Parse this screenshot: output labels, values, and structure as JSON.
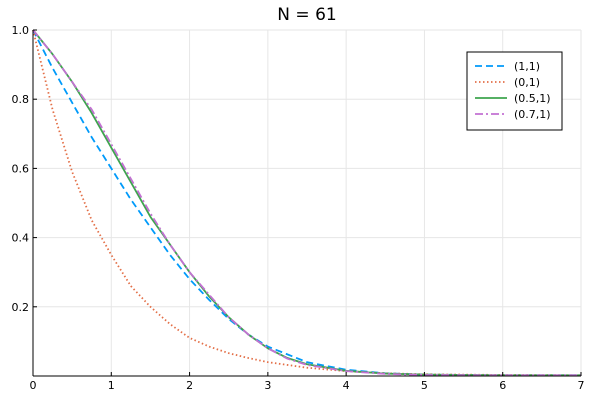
{
  "chart_data": {
    "type": "line",
    "title": "N = 61",
    "xlabel": "",
    "ylabel": "",
    "xlim": [
      0,
      7
    ],
    "ylim": [
      0,
      1.0
    ],
    "xticks": [
      0,
      1,
      2,
      3,
      4,
      5,
      6,
      7
    ],
    "yticks": [
      0.2,
      0.4,
      0.6,
      0.8,
      1.0
    ],
    "ytick_labels": [
      "0.2",
      "0.4",
      "0.6",
      "0.8",
      "1.0"
    ],
    "grid": true,
    "legend_position": "top-right",
    "series": [
      {
        "name": "(1,1)",
        "color": "#009AFA",
        "style": "dashed",
        "x": [
          0,
          0.25,
          0.5,
          0.75,
          1.0,
          1.25,
          1.5,
          1.75,
          2.0,
          2.25,
          2.5,
          2.75,
          3.0,
          3.5,
          4.0,
          4.5,
          5.0,
          6.0,
          7.0
        ],
        "y": [
          1.0,
          0.89,
          0.79,
          0.69,
          0.6,
          0.51,
          0.43,
          0.35,
          0.28,
          0.22,
          0.165,
          0.12,
          0.085,
          0.04,
          0.018,
          0.008,
          0.004,
          0.002,
          0.002
        ]
      },
      {
        "name": "(0,1)",
        "color": "#E36F47",
        "style": "dotted",
        "x": [
          0,
          0.25,
          0.5,
          0.75,
          1.0,
          1.25,
          1.5,
          1.75,
          2.0,
          2.25,
          2.5,
          2.75,
          3.0,
          3.5,
          4.0,
          4.5,
          5.0,
          6.0,
          7.0
        ],
        "y": [
          1.0,
          0.77,
          0.59,
          0.45,
          0.35,
          0.26,
          0.2,
          0.15,
          0.11,
          0.085,
          0.066,
          0.052,
          0.04,
          0.024,
          0.014,
          0.008,
          0.005,
          0.003,
          0.002
        ]
      },
      {
        "name": "(0.5,1)",
        "color": "#3EA44E",
        "style": "solid",
        "x": [
          0,
          0.25,
          0.5,
          0.75,
          1.0,
          1.25,
          1.5,
          1.75,
          2.0,
          2.25,
          2.5,
          2.75,
          3.0,
          3.25,
          3.5,
          4.0,
          4.5,
          5.0,
          6.0,
          7.0
        ],
        "y": [
          1.0,
          0.93,
          0.85,
          0.76,
          0.66,
          0.56,
          0.46,
          0.38,
          0.3,
          0.23,
          0.17,
          0.12,
          0.08,
          0.052,
          0.034,
          0.015,
          0.007,
          0.004,
          0.002,
          0.002
        ]
      },
      {
        "name": "(0.7,1)",
        "color": "#C271D2",
        "style": "dashdot",
        "x": [
          0,
          0.25,
          0.5,
          0.75,
          1.0,
          1.25,
          1.5,
          1.75,
          2.0,
          2.25,
          2.5,
          2.75,
          3.0,
          3.25,
          3.5,
          4.0,
          4.5,
          5.0,
          6.0,
          7.0
        ],
        "y": [
          1.0,
          0.93,
          0.85,
          0.77,
          0.67,
          0.57,
          0.47,
          0.38,
          0.3,
          0.235,
          0.17,
          0.12,
          0.08,
          0.05,
          0.032,
          0.014,
          0.006,
          0.003,
          0.002,
          0.002
        ]
      }
    ]
  }
}
